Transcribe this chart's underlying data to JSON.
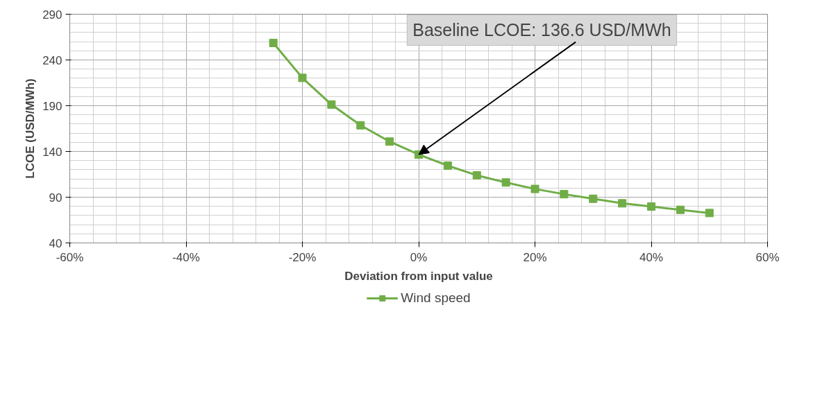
{
  "chart_data": {
    "type": "line",
    "xlabel": "Deviation from input value",
    "ylabel": "LCOE (USD/MWh)",
    "x": [
      -25,
      -20,
      -15,
      -10,
      -5,
      0,
      5,
      10,
      15,
      20,
      25,
      30,
      35,
      40,
      45,
      50
    ],
    "series": [
      {
        "name": "Wind speed",
        "color": "#70ad47",
        "values": [
          258.6,
          220.4,
          191.3,
          168.6,
          150.8,
          136.6,
          124.5,
          113.9,
          106.1,
          99.0,
          93.3,
          88.3,
          83.3,
          79.8,
          76.2,
          72.7
        ]
      }
    ],
    "xlim": [
      -60,
      60
    ],
    "xticks": [
      {
        "value": -60,
        "label": "-60%"
      },
      {
        "value": -40,
        "label": "-40%"
      },
      {
        "value": -20,
        "label": "-20%"
      },
      {
        "value": 0,
        "label": "0%"
      },
      {
        "value": 20,
        "label": "20%"
      },
      {
        "value": 40,
        "label": "40%"
      },
      {
        "value": 60,
        "label": "60%"
      }
    ],
    "ylim": [
      40,
      290
    ],
    "yticks": [
      40,
      90,
      140,
      190,
      240,
      290
    ],
    "annotations": [
      {
        "text": "Baseline LCOE: 136.6 USD/MWh",
        "x": 0,
        "y": 136.6
      }
    ],
    "grid": true,
    "legend": "bottom",
    "marker": "square",
    "line_style": "solid"
  }
}
